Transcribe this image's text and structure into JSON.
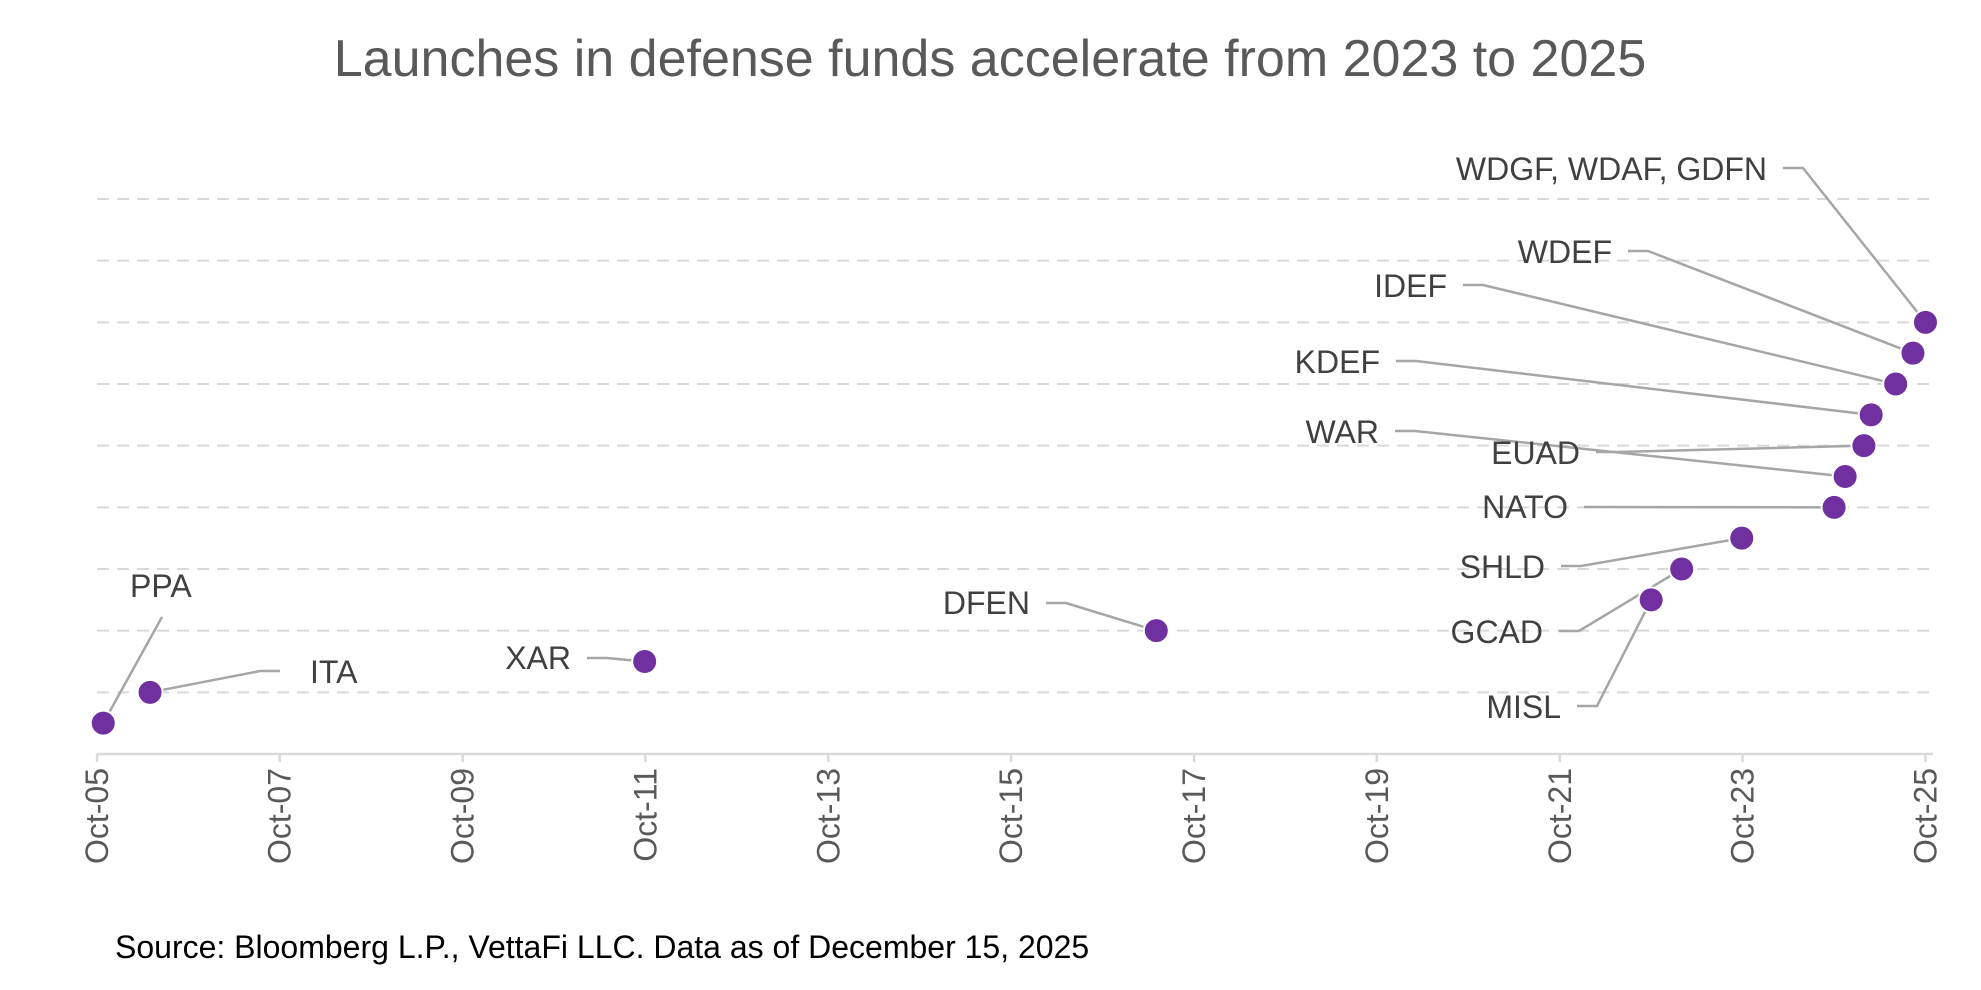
{
  "chart_data": {
    "type": "scatter",
    "title": "Launches in defense funds accelerate from 2023 to 2025",
    "source": "Source: Bloomberg L.P., VettaFi LLC. Data as of December 15, 2025",
    "x_axis": {
      "type": "date",
      "range": [
        "2005-10-01",
        "2025-10-31"
      ],
      "ticks": [
        "2005-10-01",
        "2007-10-01",
        "2009-10-01",
        "2011-10-01",
        "2013-10-01",
        "2015-10-01",
        "2017-10-01",
        "2019-10-01",
        "2021-10-01",
        "2023-10-01",
        "2025-10-01"
      ],
      "tick_labels": [
        "Oct-05",
        "Oct-07",
        "Oct-09",
        "Oct-11",
        "Oct-13",
        "Oct-15",
        "Oct-17",
        "Oct-19",
        "Oct-21",
        "Oct-23",
        "Oct-25"
      ]
    },
    "y_axis": {
      "range": [
        0,
        9
      ],
      "grid": [
        1,
        2,
        3,
        4,
        5,
        6,
        7,
        8,
        9
      ],
      "labels_shown": false
    },
    "grid": true,
    "legend": "none",
    "color": "#7030a0",
    "points": [
      {
        "label": "PPA",
        "x": "2005-10-26",
        "y": 0.5
      },
      {
        "label": "ITA",
        "x": "2006-05-01",
        "y": 1.0
      },
      {
        "label": "XAR",
        "x": "2011-09-28",
        "y": 1.5
      },
      {
        "label": "DFEN",
        "x": "2017-05-03",
        "y": 2.0
      },
      {
        "label": "MISL",
        "x": "2022-10-01",
        "y": 2.5
      },
      {
        "label": "GCAD",
        "x": "2023-01-31",
        "y": 3.0
      },
      {
        "label": "SHLD",
        "x": "2023-09-28",
        "y": 3.5
      },
      {
        "label": "NATO",
        "x": "2024-10-01",
        "y": 4.0
      },
      {
        "label": "WAR",
        "x": "2024-11-14",
        "y": 4.5
      },
      {
        "label": "EUAD",
        "x": "2025-01-28",
        "y": 5.0
      },
      {
        "label": "KDEF",
        "x": "2025-02-26",
        "y": 5.5
      },
      {
        "label": "IDEF",
        "x": "2025-06-04",
        "y": 6.0
      },
      {
        "label": "WDEF",
        "x": "2025-08-12",
        "y": 6.5
      },
      {
        "label": "WDGF, WDAF, GDFN",
        "x": "2025-10-01",
        "y": 7.0
      }
    ]
  }
}
